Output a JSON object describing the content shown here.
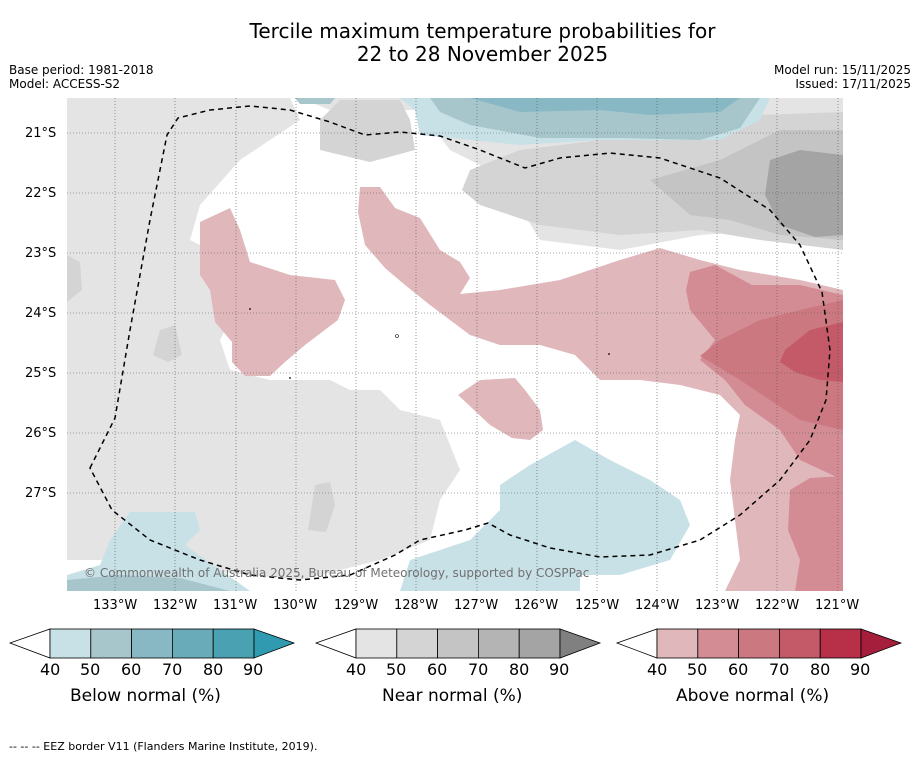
{
  "title": {
    "line1": "Tercile maximum temperature probabilities for",
    "line2": "22 to 28 November 2025"
  },
  "meta": {
    "base_period": "Base period: 1981-2018",
    "model": "Model: ACCESS-S2",
    "model_run": "Model run: 15/11/2025",
    "issued": "Issued: 17/11/2025"
  },
  "axes": {
    "lat_labels": [
      "21°S",
      "22°S",
      "23°S",
      "24°S",
      "25°S",
      "26°S",
      "27°S"
    ],
    "lon_labels": [
      "133°W",
      "132°W",
      "131°W",
      "130°W",
      "129°W",
      "128°W",
      "127°W",
      "126°W",
      "125°W",
      "124°W",
      "123°W",
      "122°W",
      "121°W"
    ]
  },
  "copyright": "© Commonwealth of Australia 2025, Bureau of Meteorology, supported by COSPPac",
  "colorbars": [
    {
      "title": "Below normal (%)",
      "ticks": [
        "40",
        "50",
        "60",
        "70",
        "80",
        "90"
      ],
      "colors": [
        "#c8e1e7",
        "#a6c6cc",
        "#88b8c4",
        "#6aabb9",
        "#4aa1b1",
        "#2f9ab0"
      ]
    },
    {
      "title": "Near normal (%)",
      "ticks": [
        "40",
        "50",
        "60",
        "70",
        "80",
        "90"
      ],
      "colors": [
        "#e4e4e4",
        "#d4d4d4",
        "#c4c4c4",
        "#b4b4b4",
        "#a4a4a4",
        "#808080"
      ]
    },
    {
      "title": "Above normal (%)",
      "ticks": [
        "40",
        "50",
        "60",
        "70",
        "80",
        "90"
      ],
      "colors": [
        "#e0b8bc",
        "#d48c94",
        "#cc7880",
        "#c45a68",
        "#b83048",
        "#a51e3c"
      ]
    }
  ],
  "footer": "--  --  -- EEZ border V11 (Flanders Marine Institute, 2019)."
}
